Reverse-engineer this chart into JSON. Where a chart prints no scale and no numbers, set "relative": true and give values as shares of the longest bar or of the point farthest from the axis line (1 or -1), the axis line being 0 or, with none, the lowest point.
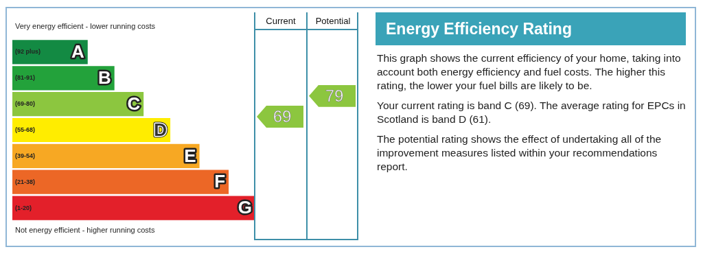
{
  "chart_data": [
    {
      "type": "bar",
      "orientation": "horizontal",
      "relative": true,
      "categories": [
        "A",
        "B",
        "C",
        "D",
        "E",
        "F",
        "G"
      ],
      "values": [
        0.31,
        0.42,
        0.54,
        0.65,
        0.77,
        0.89,
        1
      ],
      "colors": [
        "#138a43",
        "#23a23b",
        "#8cc63f",
        "#ffed00",
        "#f7a823",
        "#ec6726",
        "#e3202a"
      ],
      "annotations": [
        "Very energy efficient - lower running costs",
        "Not energy efficient - higher running costs",
        "(92 plus)",
        "(81-91)",
        "(69-80)",
        "(55-68)",
        "(39-54)",
        "(21-38)",
        "(1-20)"
      ],
      "legend": false
    },
    {
      "type": "other",
      "categories": [
        "Current",
        "Potential"
      ],
      "values": [
        69,
        79
      ],
      "data_labels": true,
      "colors": [
        "#8cc63f",
        "#8cc63f"
      ]
    },
    {
      "type": "other",
      "title": "Energy Efficiency Rating",
      "annotations": [
        "This graph shows the current efficiency of your home, taking into account both energy efficiency and fuel costs. The higher this rating, the lower your fuel bills are likely to be.",
        "Your current rating is band C (69). The average rating for EPCs in Scotland is band D (61).",
        "The potential rating shows the effect of undertaking all of the improvement measures listed within your recommendations report."
      ]
    }
  ]
}
